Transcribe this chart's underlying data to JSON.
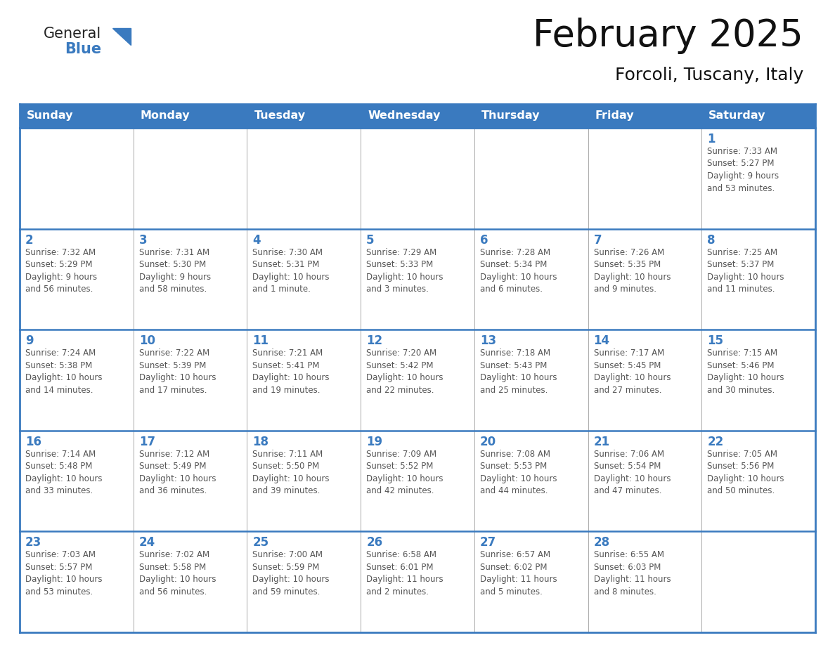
{
  "title": "February 2025",
  "subtitle": "Forcoli, Tuscany, Italy",
  "header_bg": "#3a7abf",
  "header_text": "#ffffff",
  "border_color": "#3a7abf",
  "cell_line_color": "#aaaaaa",
  "text_color": "#555555",
  "day_number_color": "#3a7abf",
  "days_of_week": [
    "Sunday",
    "Monday",
    "Tuesday",
    "Wednesday",
    "Thursday",
    "Friday",
    "Saturday"
  ],
  "weeks": [
    [
      {
        "day": null
      },
      {
        "day": null
      },
      {
        "day": null
      },
      {
        "day": null
      },
      {
        "day": null
      },
      {
        "day": null
      },
      {
        "day": 1,
        "sunrise": "7:33 AM",
        "sunset": "5:27 PM",
        "daylight": "9 hours\nand 53 minutes."
      }
    ],
    [
      {
        "day": 2,
        "sunrise": "7:32 AM",
        "sunset": "5:29 PM",
        "daylight": "9 hours\nand 56 minutes."
      },
      {
        "day": 3,
        "sunrise": "7:31 AM",
        "sunset": "5:30 PM",
        "daylight": "9 hours\nand 58 minutes."
      },
      {
        "day": 4,
        "sunrise": "7:30 AM",
        "sunset": "5:31 PM",
        "daylight": "10 hours\nand 1 minute."
      },
      {
        "day": 5,
        "sunrise": "7:29 AM",
        "sunset": "5:33 PM",
        "daylight": "10 hours\nand 3 minutes."
      },
      {
        "day": 6,
        "sunrise": "7:28 AM",
        "sunset": "5:34 PM",
        "daylight": "10 hours\nand 6 minutes."
      },
      {
        "day": 7,
        "sunrise": "7:26 AM",
        "sunset": "5:35 PM",
        "daylight": "10 hours\nand 9 minutes."
      },
      {
        "day": 8,
        "sunrise": "7:25 AM",
        "sunset": "5:37 PM",
        "daylight": "10 hours\nand 11 minutes."
      }
    ],
    [
      {
        "day": 9,
        "sunrise": "7:24 AM",
        "sunset": "5:38 PM",
        "daylight": "10 hours\nand 14 minutes."
      },
      {
        "day": 10,
        "sunrise": "7:22 AM",
        "sunset": "5:39 PM",
        "daylight": "10 hours\nand 17 minutes."
      },
      {
        "day": 11,
        "sunrise": "7:21 AM",
        "sunset": "5:41 PM",
        "daylight": "10 hours\nand 19 minutes."
      },
      {
        "day": 12,
        "sunrise": "7:20 AM",
        "sunset": "5:42 PM",
        "daylight": "10 hours\nand 22 minutes."
      },
      {
        "day": 13,
        "sunrise": "7:18 AM",
        "sunset": "5:43 PM",
        "daylight": "10 hours\nand 25 minutes."
      },
      {
        "day": 14,
        "sunrise": "7:17 AM",
        "sunset": "5:45 PM",
        "daylight": "10 hours\nand 27 minutes."
      },
      {
        "day": 15,
        "sunrise": "7:15 AM",
        "sunset": "5:46 PM",
        "daylight": "10 hours\nand 30 minutes."
      }
    ],
    [
      {
        "day": 16,
        "sunrise": "7:14 AM",
        "sunset": "5:48 PM",
        "daylight": "10 hours\nand 33 minutes."
      },
      {
        "day": 17,
        "sunrise": "7:12 AM",
        "sunset": "5:49 PM",
        "daylight": "10 hours\nand 36 minutes."
      },
      {
        "day": 18,
        "sunrise": "7:11 AM",
        "sunset": "5:50 PM",
        "daylight": "10 hours\nand 39 minutes."
      },
      {
        "day": 19,
        "sunrise": "7:09 AM",
        "sunset": "5:52 PM",
        "daylight": "10 hours\nand 42 minutes."
      },
      {
        "day": 20,
        "sunrise": "7:08 AM",
        "sunset": "5:53 PM",
        "daylight": "10 hours\nand 44 minutes."
      },
      {
        "day": 21,
        "sunrise": "7:06 AM",
        "sunset": "5:54 PM",
        "daylight": "10 hours\nand 47 minutes."
      },
      {
        "day": 22,
        "sunrise": "7:05 AM",
        "sunset": "5:56 PM",
        "daylight": "10 hours\nand 50 minutes."
      }
    ],
    [
      {
        "day": 23,
        "sunrise": "7:03 AM",
        "sunset": "5:57 PM",
        "daylight": "10 hours\nand 53 minutes."
      },
      {
        "day": 24,
        "sunrise": "7:02 AM",
        "sunset": "5:58 PM",
        "daylight": "10 hours\nand 56 minutes."
      },
      {
        "day": 25,
        "sunrise": "7:00 AM",
        "sunset": "5:59 PM",
        "daylight": "10 hours\nand 59 minutes."
      },
      {
        "day": 26,
        "sunrise": "6:58 AM",
        "sunset": "6:01 PM",
        "daylight": "11 hours\nand 2 minutes."
      },
      {
        "day": 27,
        "sunrise": "6:57 AM",
        "sunset": "6:02 PM",
        "daylight": "11 hours\nand 5 minutes."
      },
      {
        "day": 28,
        "sunrise": "6:55 AM",
        "sunset": "6:03 PM",
        "daylight": "11 hours\nand 8 minutes."
      },
      {
        "day": null
      }
    ]
  ],
  "logo_text1": "General",
  "logo_text2": "Blue",
  "logo_color1": "#222222",
  "logo_color2": "#3a7abf",
  "logo_triangle_color": "#3a7abf"
}
